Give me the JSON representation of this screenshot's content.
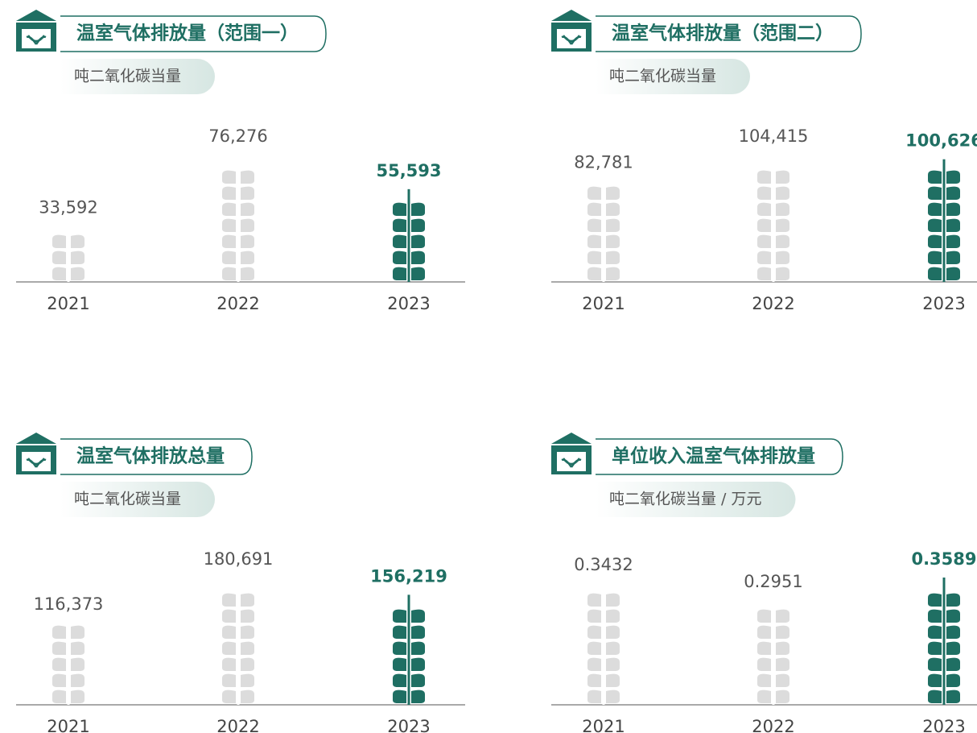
{
  "chart_data": [
    {
      "type": "bar",
      "title": "温室气体排放量（范围一）",
      "subtitle": "吨二氧化碳当量",
      "categories": [
        "2021",
        "2022",
        "2023"
      ],
      "values": [
        33592,
        76276,
        55593
      ],
      "value_labels": [
        "33,592",
        "76,276",
        "55,593"
      ],
      "colors": [
        "#dcdcdc",
        "#dcdcdc",
        "#1f6f63"
      ]
    },
    {
      "type": "bar",
      "title": "温室气体排放量（范围二）",
      "subtitle": "吨二氧化碳当量",
      "categories": [
        "2021",
        "2022",
        "2023"
      ],
      "values": [
        82781,
        104415,
        100626
      ],
      "value_labels": [
        "82,781",
        "104,415",
        "100,626"
      ],
      "colors": [
        "#dcdcdc",
        "#dcdcdc",
        "#1f6f63"
      ]
    },
    {
      "type": "bar",
      "title": "温室气体排放总量",
      "subtitle": "吨二氧化碳当量",
      "categories": [
        "2021",
        "2022",
        "2023"
      ],
      "values": [
        116373,
        180691,
        156219
      ],
      "value_labels": [
        "116,373",
        "180,691",
        "156,219"
      ],
      "colors": [
        "#dcdcdc",
        "#dcdcdc",
        "#1f6f63"
      ]
    },
    {
      "type": "bar",
      "title": "单位收入温室气体排放量",
      "subtitle": "吨二氧化碳当量 / 万元",
      "categories": [
        "2021",
        "2022",
        "2023"
      ],
      "values": [
        0.3432,
        0.2951,
        0.3589
      ],
      "colors": [
        "#dcdcdc",
        "#dcdcdc",
        "#1f6f63"
      ]
    }
  ]
}
